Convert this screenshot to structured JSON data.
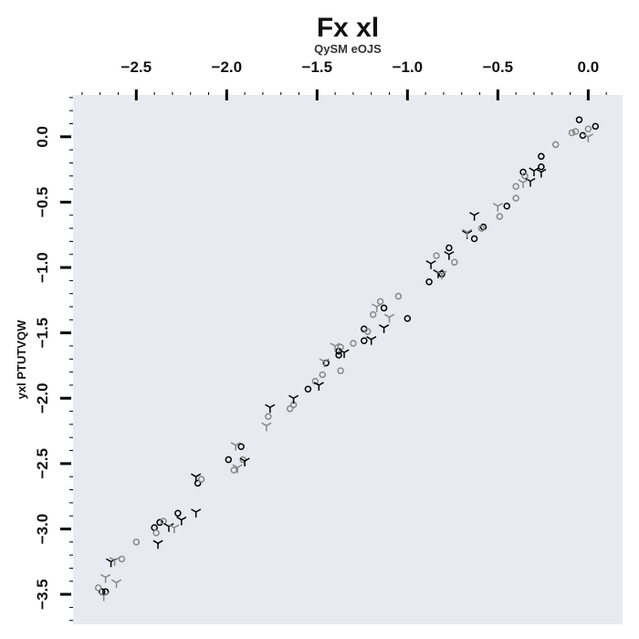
{
  "chart_data": {
    "type": "scatter",
    "title": "Fx xl",
    "xlabel": "QySM eOJS",
    "ylabel": "yxl PTUTVQW",
    "x_axis_position": "top",
    "xlim": [
      -2.85,
      0.19
    ],
    "ylim": [
      -3.73,
      0.32
    ],
    "x_ticks": [
      {
        "value": -2.5,
        "label": "−2.5"
      },
      {
        "value": -2.0,
        "label": "−2.0"
      },
      {
        "value": -1.5,
        "label": "−1.5"
      },
      {
        "value": -1.0,
        "label": "−1.0"
      },
      {
        "value": -0.5,
        "label": "−0.5"
      },
      {
        "value": 0.0,
        "label": "0.0"
      }
    ],
    "y_ticks": [
      {
        "value": 0.0,
        "label": "0.0"
      },
      {
        "value": -0.5,
        "label": "−0.5"
      },
      {
        "value": -1.0,
        "label": "−1.0"
      },
      {
        "value": -1.5,
        "label": "−1.5"
      },
      {
        "value": -2.0,
        "label": "−2.0"
      },
      {
        "value": -2.5,
        "label": "−2.5"
      },
      {
        "value": -3.0,
        "label": "−3.0"
      },
      {
        "value": -3.5,
        "label": "−3.5"
      }
    ],
    "grid": false,
    "background": "#e9e9f1",
    "series": [
      {
        "marker": "circle",
        "color": "#000000",
        "points": [
          [
            0.04,
            0.08
          ],
          [
            -0.05,
            0.13
          ],
          [
            -0.03,
            0.01
          ],
          [
            -0.26,
            -0.15
          ],
          [
            -0.26,
            -0.23
          ],
          [
            -0.36,
            -0.27
          ],
          [
            -0.45,
            -0.53
          ],
          [
            -0.58,
            -0.69
          ],
          [
            -0.63,
            -0.78
          ],
          [
            -0.77,
            -0.85
          ],
          [
            -0.81,
            -1.05
          ],
          [
            -0.88,
            -1.11
          ],
          [
            -1.0,
            -1.39
          ],
          [
            -1.13,
            -1.31
          ],
          [
            -1.24,
            -1.56
          ],
          [
            -1.24,
            -1.47
          ],
          [
            -1.38,
            -1.67
          ],
          [
            -1.38,
            -1.64
          ],
          [
            -1.45,
            -1.73
          ],
          [
            -1.55,
            -1.93
          ],
          [
            -1.92,
            -2.37
          ],
          [
            -1.99,
            -2.47
          ],
          [
            -2.16,
            -2.65
          ],
          [
            -2.27,
            -2.88
          ],
          [
            -2.37,
            -2.95
          ],
          [
            -2.4,
            -2.99
          ],
          [
            -2.67,
            -3.48
          ],
          [
            -2.69,
            -3.48
          ]
        ]
      },
      {
        "marker": "circle",
        "color": "#888888",
        "points": [
          [
            -0.07,
            0.04
          ],
          [
            -0.09,
            0.03
          ],
          [
            0.0,
            0.06
          ],
          [
            -0.18,
            -0.06
          ],
          [
            -0.35,
            -0.3
          ],
          [
            -0.4,
            -0.38
          ],
          [
            -0.4,
            -0.47
          ],
          [
            -0.49,
            -0.61
          ],
          [
            -0.59,
            -0.7
          ],
          [
            -0.74,
            -0.96
          ],
          [
            -0.84,
            -0.91
          ],
          [
            -1.05,
            -1.22
          ],
          [
            -1.15,
            -1.26
          ],
          [
            -1.19,
            -1.36
          ],
          [
            -1.22,
            -1.49
          ],
          [
            -1.3,
            -1.58
          ],
          [
            -1.37,
            -1.61
          ],
          [
            -1.37,
            -1.79
          ],
          [
            -1.47,
            -1.82
          ],
          [
            -1.51,
            -1.87
          ],
          [
            -1.63,
            -2.05
          ],
          [
            -1.65,
            -2.08
          ],
          [
            -1.77,
            -2.14
          ],
          [
            -1.91,
            -2.47
          ],
          [
            -1.96,
            -2.55
          ],
          [
            -2.14,
            -2.62
          ],
          [
            -2.35,
            -2.94
          ],
          [
            -2.39,
            -3.03
          ],
          [
            -2.5,
            -3.1
          ],
          [
            -2.58,
            -3.23
          ],
          [
            -2.71,
            -3.45
          ]
        ]
      },
      {
        "marker": "tri_down",
        "color": "#000000",
        "points": [
          [
            -0.26,
            -0.27
          ],
          [
            -0.32,
            -0.34
          ],
          [
            -0.3,
            -0.26
          ],
          [
            -0.63,
            -0.6
          ],
          [
            -0.67,
            -0.74
          ],
          [
            -0.77,
            -0.9
          ],
          [
            -0.83,
            -1.04
          ],
          [
            -0.87,
            -0.97
          ],
          [
            -1.13,
            -1.46
          ],
          [
            -1.2,
            -1.55
          ],
          [
            -1.35,
            -1.65
          ],
          [
            -1.49,
            -1.9
          ],
          [
            -1.63,
            -2.0
          ],
          [
            -1.76,
            -2.07
          ],
          [
            -1.9,
            -2.48
          ],
          [
            -2.17,
            -2.6
          ],
          [
            -2.17,
            -2.87
          ],
          [
            -2.25,
            -2.93
          ],
          [
            -2.32,
            -2.98
          ],
          [
            -2.38,
            -3.11
          ],
          [
            -2.64,
            -3.25
          ]
        ]
      },
      {
        "marker": "tri_down",
        "color": "#888888",
        "points": [
          [
            0.0,
            0.0
          ],
          [
            -0.36,
            -0.35
          ],
          [
            -0.5,
            -0.53
          ],
          [
            -0.67,
            -0.73
          ],
          [
            -0.81,
            -1.05
          ],
          [
            -1.17,
            -1.3
          ],
          [
            -1.1,
            -1.38
          ],
          [
            -1.4,
            -1.6
          ],
          [
            -1.46,
            -1.72
          ],
          [
            -1.78,
            -2.21
          ],
          [
            -1.95,
            -2.36
          ],
          [
            -1.94,
            -2.53
          ],
          [
            -2.29,
            -2.99
          ],
          [
            -2.62,
            -3.24
          ],
          [
            -2.61,
            -3.41
          ],
          [
            -2.67,
            -3.37
          ],
          [
            -2.68,
            -3.51
          ]
        ]
      }
    ]
  }
}
